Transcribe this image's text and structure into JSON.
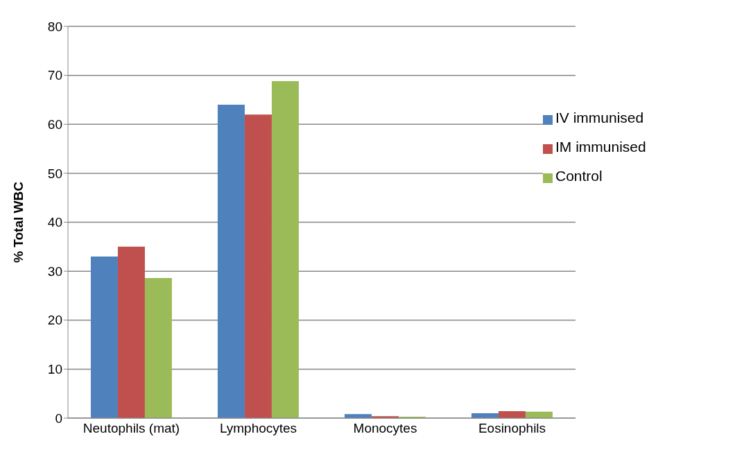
{
  "chart_data": {
    "type": "bar",
    "ylabel": "% Total WBC",
    "categories": [
      "Neutophils (mat)",
      "Lymphocytes",
      "Monocytes",
      "Eosinophils"
    ],
    "series": [
      {
        "name": "IV immunised",
        "color": "#4f81bd",
        "values": [
          33,
          64,
          0.8,
          1.0
        ]
      },
      {
        "name": "IM immunised",
        "color": "#c0504d",
        "values": [
          35,
          62,
          0.4,
          1.4
        ]
      },
      {
        "name": "Control",
        "color": "#9bbb59",
        "values": [
          28.6,
          68.8,
          0.3,
          1.3
        ]
      }
    ],
    "ylim": [
      0,
      80
    ],
    "yticks": [
      0,
      10,
      20,
      30,
      40,
      50,
      60,
      70,
      80
    ],
    "grid": "y",
    "legend": "right"
  }
}
